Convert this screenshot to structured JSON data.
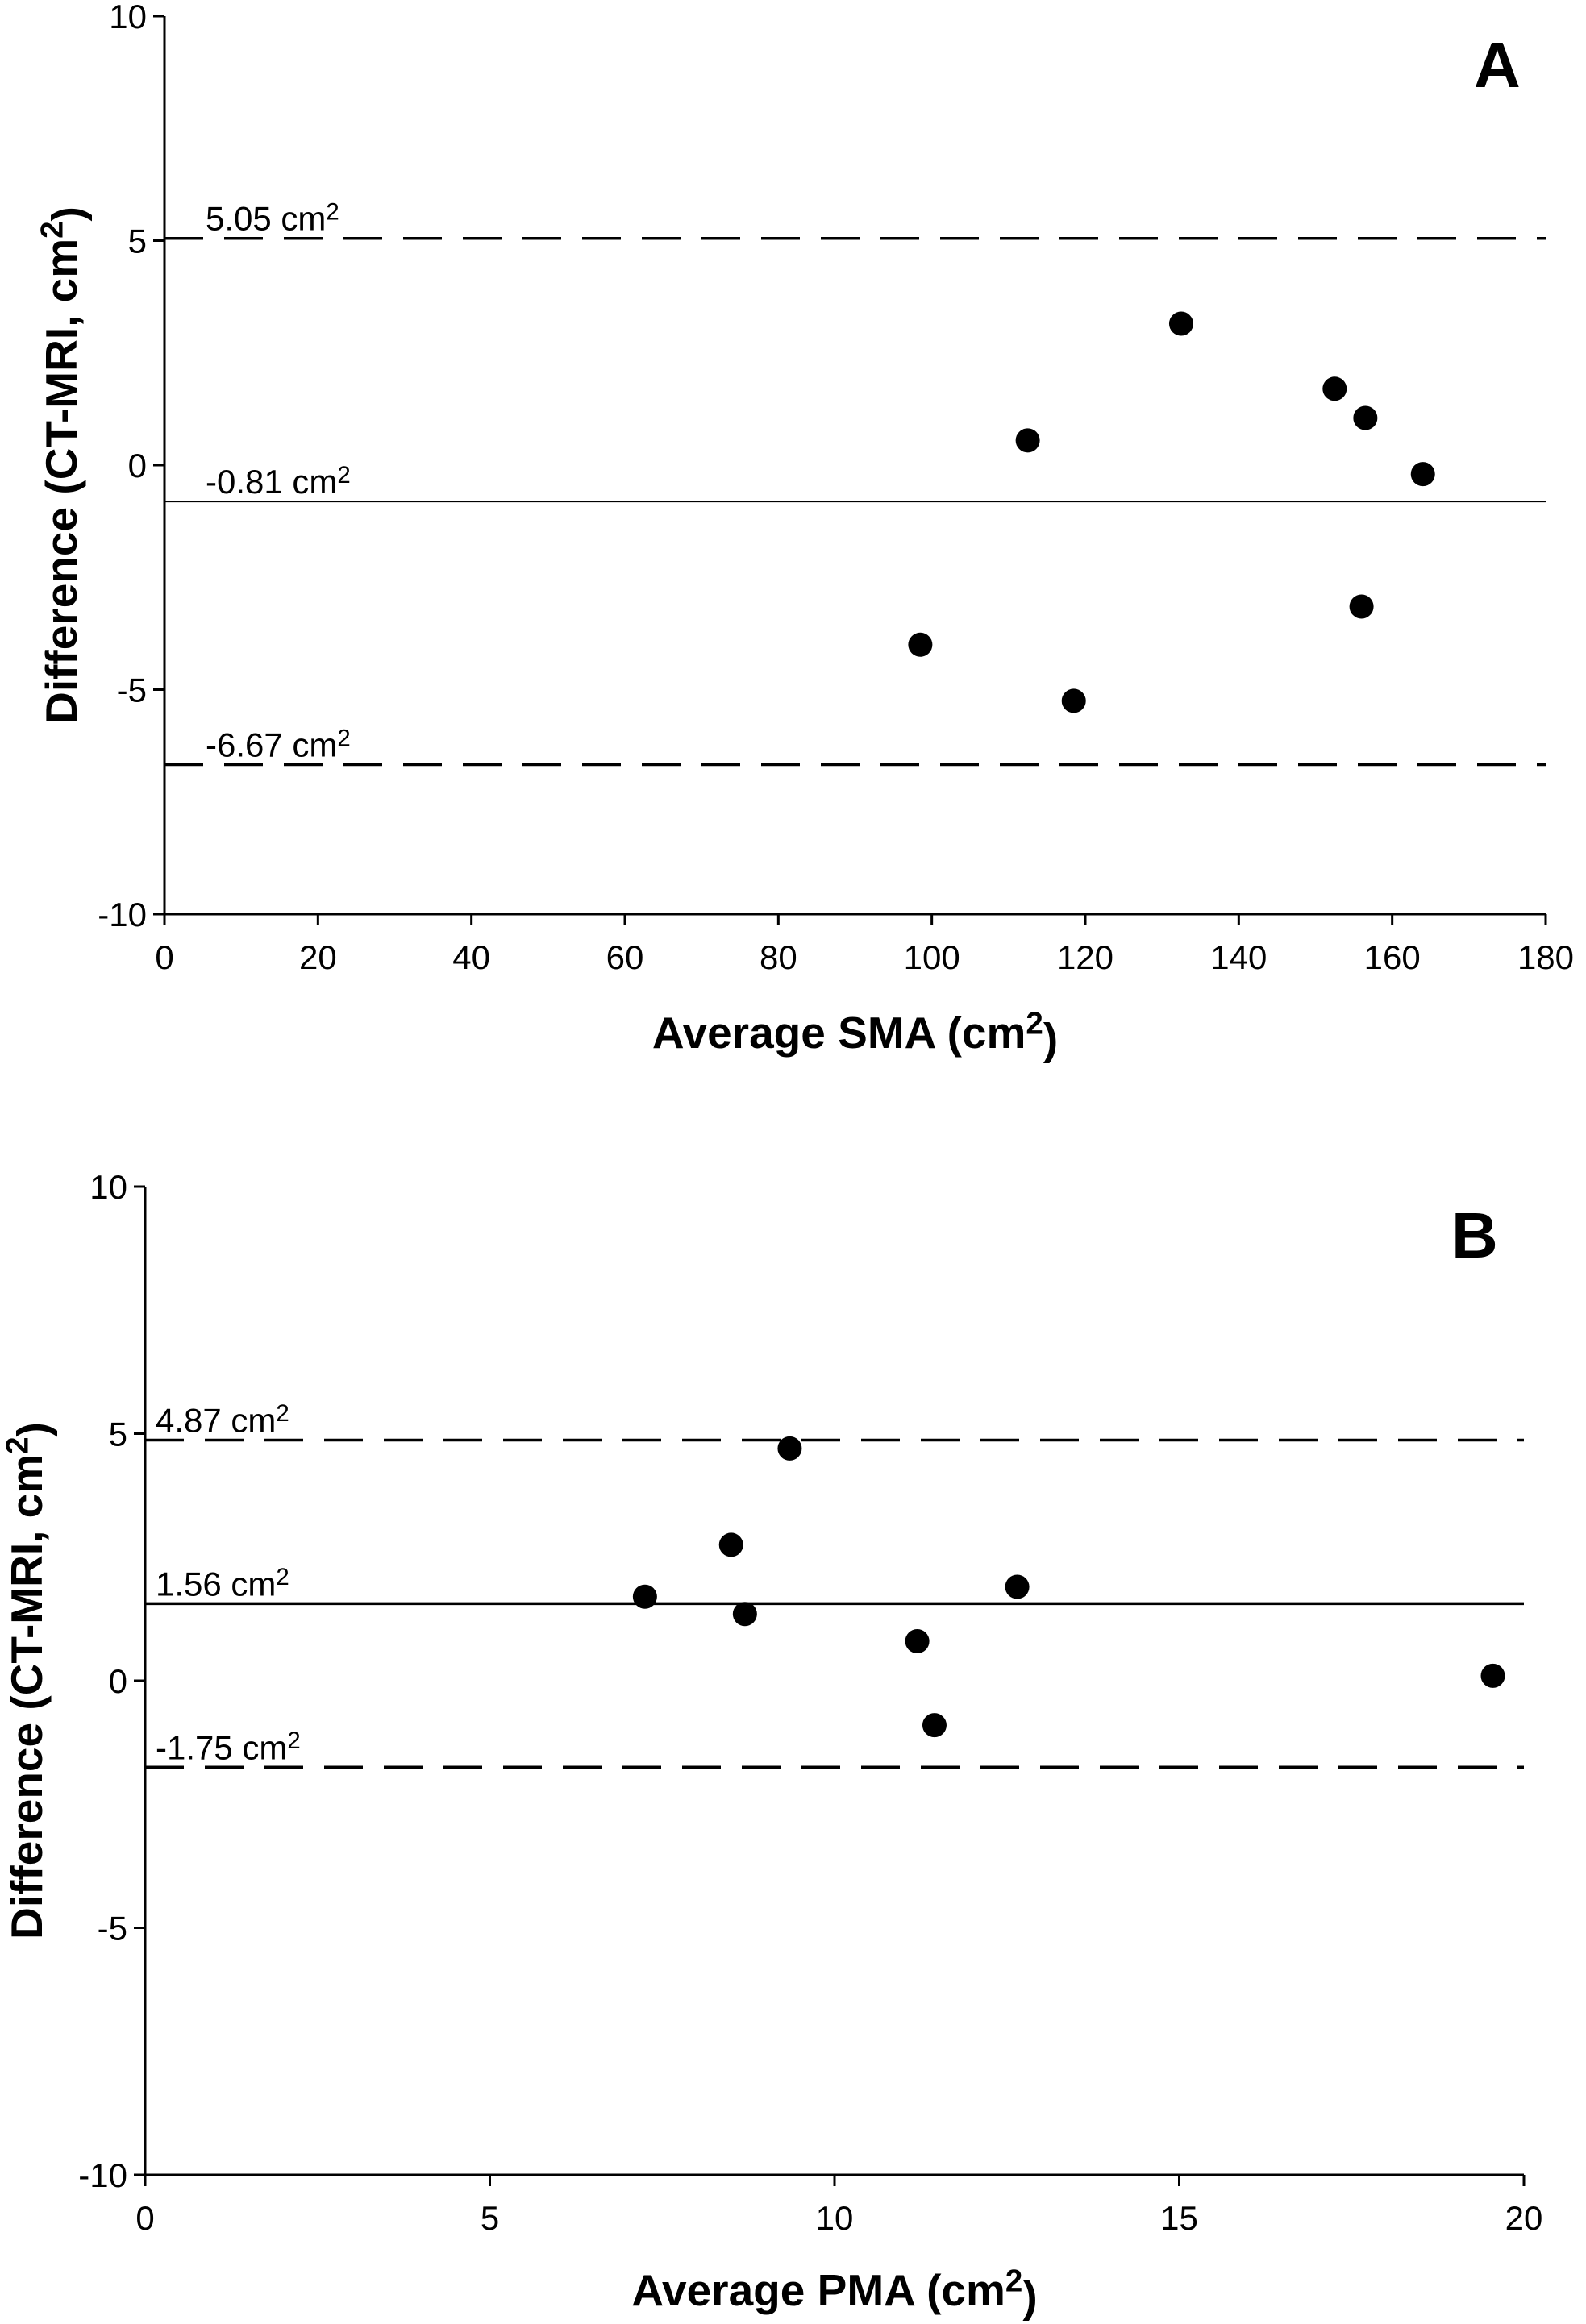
{
  "chart_data": [
    {
      "type": "scatter",
      "panel_label": "A",
      "xlabel": "Average SMA (cm",
      "xlabel_sup": "2",
      "xlabel_end": ")",
      "ylabel": "Difference (CT-MRI, cm",
      "ylabel_sup": "2",
      "ylabel_end": ")",
      "xlim": [
        0,
        180
      ],
      "ylim": [
        -10,
        10
      ],
      "xticks": [
        0,
        20,
        40,
        60,
        80,
        100,
        120,
        140,
        160,
        180
      ],
      "yticks": [
        -10,
        -5,
        0,
        5,
        10
      ],
      "xtick_labels": [
        "0",
        "20",
        "40",
        "60",
        "80",
        "100",
        "120",
        "140",
        "160",
        "180"
      ],
      "ytick_labels": [
        "-10",
        "-5",
        "0",
        "5",
        "10"
      ],
      "grid": false,
      "points": [
        {
          "x": 98.5,
          "y": -4.0
        },
        {
          "x": 112.5,
          "y": 0.55
        },
        {
          "x": 118.5,
          "y": -5.25
        },
        {
          "x": 132.5,
          "y": 3.15
        },
        {
          "x": 152.5,
          "y": 1.7
        },
        {
          "x": 156.5,
          "y": 1.05
        },
        {
          "x": 156,
          "y": -3.15
        },
        {
          "x": 164,
          "y": -0.2
        }
      ],
      "reference_lines": [
        {
          "y": 5.05,
          "style": "dashed",
          "label": "5.05 cm",
          "label_sup": "2"
        },
        {
          "y": -0.81,
          "style": "solid",
          "label": "-0.81 cm",
          "label_sup": "2"
        },
        {
          "y": -6.67,
          "style": "dashed",
          "label": "-6.67 cm",
          "label_sup": "2"
        }
      ]
    },
    {
      "type": "scatter",
      "panel_label": "B",
      "xlabel": "Average PMA (cm",
      "xlabel_sup": "2",
      "xlabel_end": ")",
      "ylabel": "Difference (CT-MRI, cm",
      "ylabel_sup": "2",
      "ylabel_end": ")",
      "xlim": [
        0,
        20
      ],
      "ylim": [
        -10,
        10
      ],
      "xticks": [
        0,
        5,
        10,
        15,
        20
      ],
      "yticks": [
        -10,
        -5,
        0,
        5,
        10
      ],
      "xtick_labels": [
        "0",
        "5",
        "10",
        "15",
        "20"
      ],
      "ytick_labels": [
        "-10",
        "-5",
        "0",
        "5",
        "10"
      ],
      "grid": false,
      "points": [
        {
          "x": 7.25,
          "y": 1.7
        },
        {
          "x": 8.5,
          "y": 2.75
        },
        {
          "x": 8.7,
          "y": 1.35
        },
        {
          "x": 9.35,
          "y": 4.7
        },
        {
          "x": 11.2,
          "y": 0.8
        },
        {
          "x": 11.45,
          "y": -0.9
        },
        {
          "x": 12.65,
          "y": 1.9
        },
        {
          "x": 19.55,
          "y": 0.1
        }
      ],
      "reference_lines": [
        {
          "y": 4.87,
          "style": "dashed",
          "label": "4.87 cm",
          "label_sup": "2"
        },
        {
          "y": 1.56,
          "style": "solid",
          "label": "1.56 cm",
          "label_sup": "2"
        },
        {
          "y": -1.75,
          "style": "dashed",
          "label": "-1.75 cm",
          "label_sup": "2"
        }
      ]
    }
  ]
}
